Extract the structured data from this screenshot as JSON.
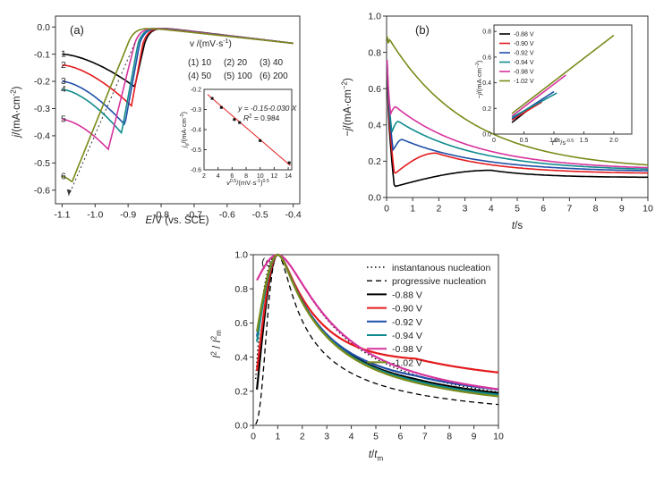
{
  "chart_data": [
    {
      "id": "a",
      "panel_label": "(a)",
      "type": "line",
      "xlabel_main": "E",
      "xlabel_rest": "/V (vs. SCE)",
      "ylabel_main": "j",
      "ylabel_rest": "/(mA·cm",
      "ylabel_sup": "-2",
      "ylabel_close": ")",
      "xlim": [
        -1.12,
        -0.38
      ],
      "ylim": [
        -0.65,
        0.04
      ],
      "xticks": [
        "-1.1",
        "-1.0",
        "-0.9",
        "-0.8",
        "-0.7",
        "-0.6",
        "-0.5",
        "-0.4"
      ],
      "yticks": [
        "0.0",
        "-0.1",
        "-0.2",
        "-0.3",
        "-0.4",
        "-0.5",
        "-0.6"
      ],
      "legend_title": "v /(mV·s",
      "legend_title_sup": "-1",
      "legend_title_close": ")",
      "legend_entries": [
        "(1) 10",
        "(2) 20",
        "(3) 40",
        "(4) 50",
        "(5) 100",
        "(6) 200"
      ],
      "series": [
        {
          "name": "1",
          "color": "#000000",
          "peak_E": -0.88,
          "peak_j": -0.22,
          "start_j": -0.1,
          "onset": -0.85
        },
        {
          "name": "2",
          "color": "#e41a1c",
          "peak_E": -0.89,
          "peak_j": -0.29,
          "start_j": -0.14,
          "onset": -0.855
        },
        {
          "name": "3",
          "color": "#1f4fa8",
          "peak_E": -0.91,
          "peak_j": -0.36,
          "start_j": -0.2,
          "onset": -0.865
        },
        {
          "name": "4",
          "color": "#0f8b8d",
          "peak_E": -0.92,
          "peak_j": -0.39,
          "start_j": -0.23,
          "onset": -0.87
        },
        {
          "name": "5",
          "color": "#d6339c",
          "peak_E": -0.96,
          "peak_j": -0.45,
          "start_j": -0.34,
          "onset": -0.88
        },
        {
          "name": "6",
          "color": "#7a8a1a",
          "peak_E": -1.07,
          "peak_j": -0.57,
          "start_j": -0.55,
          "onset": -0.9
        }
      ],
      "inset": {
        "type": "scatter",
        "xlabel": "v",
        "xlabel_sup": "0.5",
        "xlabel_rest": "/(mV·s",
        "xlabel_sup2": "-1",
        "xlabel_close": ")",
        "xlabel_sup3": "0.5",
        "ylabel": "j",
        "ylabel_sub": "p",
        "ylabel_rest": "/(mA·cm",
        "ylabel_sup": "-2",
        "ylabel_close": ")",
        "xlim": [
          2,
          14.5
        ],
        "ylim": [
          -0.6,
          -0.2
        ],
        "xticks": [
          "2",
          "4",
          "6",
          "8",
          "10",
          "12",
          "14"
        ],
        "yticks": [
          "-0.2",
          "-0.3",
          "-0.4",
          "-0.5",
          "-0.6"
        ],
        "points": [
          [
            3.16,
            -0.245
          ],
          [
            4.47,
            -0.29
          ],
          [
            6.32,
            -0.35
          ],
          [
            7.07,
            -0.365
          ],
          [
            10.0,
            -0.455
          ],
          [
            14.14,
            -0.565
          ]
        ],
        "fit_line": [
          [
            2.5,
            -0.225
          ],
          [
            14.3,
            -0.579
          ]
        ],
        "equation": "y = -0.15-0.030 X",
        "r2": "R",
        "r2_sup": "2",
        "r2_value": " = 0.984"
      }
    },
    {
      "id": "b",
      "panel_label": "(b)",
      "type": "line",
      "xlabel_main": "t",
      "xlabel_rest": "/s",
      "ylabel_main": "−j",
      "ylabel_rest": "/(mA·cm",
      "ylabel_sup": "−2",
      "ylabel_close": ")",
      "xlim": [
        0,
        10
      ],
      "ylim": [
        0,
        1.0
      ],
      "xticks": [
        "0",
        "1",
        "2",
        "3",
        "4",
        "5",
        "6",
        "7",
        "8",
        "9",
        "10"
      ],
      "yticks": [
        "0.0",
        "0.2",
        "0.4",
        "0.6",
        "0.8",
        "1.0"
      ],
      "series": [
        {
          "name": "-0.88 V",
          "color": "#000000",
          "min_t": 0.3,
          "min_j": 0.06,
          "peak_t": 4.0,
          "peak_j": 0.15,
          "end_j": 0.11
        },
        {
          "name": "-0.90 V",
          "color": "#e41a1c",
          "min_t": 0.3,
          "min_j": 0.13,
          "peak_t": 1.9,
          "peak_j": 0.245,
          "end_j": 0.13
        },
        {
          "name": "-0.92 V",
          "color": "#1f4fa8",
          "min_t": 0.25,
          "min_j": 0.26,
          "peak_t": 0.6,
          "peak_j": 0.32,
          "end_j": 0.14
        },
        {
          "name": "-0.94 V",
          "color": "#0f8b8d",
          "min_t": 0.2,
          "min_j": 0.36,
          "peak_t": 0.45,
          "peak_j": 0.42,
          "end_j": 0.145
        },
        {
          "name": "-0.98 V",
          "color": "#d6339c",
          "min_t": 0.15,
          "min_j": 0.46,
          "peak_t": 0.35,
          "peak_j": 0.5,
          "end_j": 0.15
        },
        {
          "name": "-1.02 V",
          "color": "#7a8a1a",
          "min_t": 0.05,
          "min_j": 0.84,
          "peak_t": 0.12,
          "peak_j": 0.87,
          "end_j": 0.15
        }
      ],
      "inset": {
        "type": "line",
        "xlabel": "t",
        "xlabel_sup": "0.5",
        "xlabel_rest": "/s",
        "xlabel_sup2": "-0.5",
        "ylabel": "−j",
        "ylabel_rest": "/(mA·cm",
        "ylabel_sup": "−2",
        "ylabel_close": ")",
        "xlim": [
          0,
          2.3
        ],
        "ylim": [
          0,
          0.85
        ],
        "xticks": [
          "0",
          "0.5",
          "1.0",
          "1.5",
          "2.0"
        ],
        "yticks": [
          "0.0",
          "0.2",
          "0.4",
          "0.6",
          "0.8"
        ],
        "legend": [
          "-0.88 V",
          "-0.90 V",
          "-0.92 V",
          "-0.94 V",
          "-0.98 V",
          "-1.02 V"
        ],
        "lines": [
          {
            "x0": 0.3,
            "y0": 0.09,
            "x1": 0.6,
            "y1": 0.2
          },
          {
            "x0": 0.3,
            "y0": 0.11,
            "x1": 0.8,
            "y1": 0.25
          },
          {
            "x0": 0.3,
            "y0": 0.12,
            "x1": 1.0,
            "y1": 0.33
          },
          {
            "x0": 0.3,
            "y0": 0.13,
            "x1": 1.05,
            "y1": 0.32
          },
          {
            "x0": 0.3,
            "y0": 0.14,
            "x1": 1.2,
            "y1": 0.46
          },
          {
            "x0": 0.3,
            "y0": 0.16,
            "x1": 2.0,
            "y1": 0.77
          }
        ]
      }
    },
    {
      "id": "c",
      "panel_label": "(c)",
      "type": "line",
      "xlabel_main": "t",
      "xlabel_rest": "/",
      "xlabel_main2": "t",
      "xlabel_sub": "m",
      "ylabel_main": "I",
      "ylabel_sup": "2",
      "ylabel_mid": " / ",
      "ylabel_main2": "I",
      "ylabel_sup2": "2",
      "ylabel_sub2": "m",
      "xlim": [
        0,
        10
      ],
      "ylim": [
        0,
        1.0
      ],
      "xticks": [
        "0",
        "1",
        "2",
        "3",
        "4",
        "5",
        "6",
        "7",
        "8",
        "9",
        "10"
      ],
      "yticks": [
        "0.0",
        "0.2",
        "0.4",
        "0.6",
        "0.8",
        "1.0"
      ],
      "legend": [
        {
          "label": "instantanous nucleation",
          "color": "#000000",
          "style": "dotted"
        },
        {
          "label": "progressive nucleation",
          "color": "#000000",
          "style": "dashed"
        },
        {
          "label": "-0.88 V",
          "color": "#000000",
          "style": "solid"
        },
        {
          "label": "-0.90 V",
          "color": "#e41a1c",
          "style": "solid"
        },
        {
          "label": "-0.92 V",
          "color": "#1f4fa8",
          "style": "solid"
        },
        {
          "label": "-0.94 V",
          "color": "#0f8b8d",
          "style": "solid"
        },
        {
          "label": "-0.98 V",
          "color": "#d6339c",
          "style": "solid"
        },
        {
          "label": "-1.02 V",
          "color": "#7a8a1a",
          "style": "solid"
        }
      ],
      "series": [
        {
          "name": "-0.88 V",
          "color": "#000000",
          "start_y": 0.21,
          "end_y": 0.19
        },
        {
          "name": "-0.90 V",
          "color": "#e41a1c",
          "start_y": 0.32,
          "end_y": 0.31
        },
        {
          "name": "-0.92 V",
          "color": "#1f4fa8",
          "start_y": 0.52,
          "end_y": 0.21
        },
        {
          "name": "-0.94 V",
          "color": "#0f8b8d",
          "start_y": 0.49,
          "end_y": 0.18
        },
        {
          "name": "-0.98 V",
          "color": "#d6339c",
          "start_y": 0.85,
          "end_y": 0.2
        },
        {
          "name": "-1.02 V",
          "color": "#7a8a1a",
          "start_y": 0.55,
          "end_y": 0.17
        }
      ]
    }
  ]
}
